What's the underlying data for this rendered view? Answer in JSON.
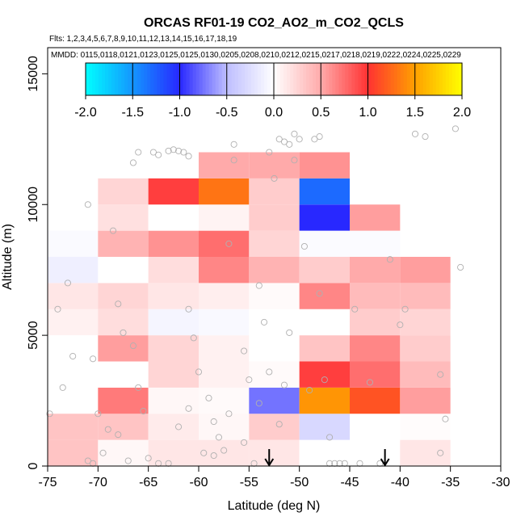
{
  "chart_data": {
    "type": "heatmap",
    "title": "ORCAS RF01-19 CO2_AO2_m_CO2_QCLS",
    "flights_label": "Flts: 1,2,3,4,5,6,7,8,9,10,11,12,13,14,15,16,17,18,19",
    "dates_label": "MMDD: 0115,0118,0121,0123,0125,0125,0130,0205,0208,0210,0212,0215,0217,0218,0219,0222,0224,0225,0229",
    "xlabel": "Latitude (deg N)",
    "ylabel": "Altitude (m)",
    "xlim": [
      -75,
      -30
    ],
    "ylim": [
      0,
      16000
    ],
    "x_ticks": [
      -75,
      -70,
      -65,
      -60,
      -55,
      -50,
      -45,
      -40,
      -35,
      -30
    ],
    "x_tick_labels": [
      "-75",
      "-70",
      "-65",
      "-60",
      "-55",
      "-50",
      "-45",
      "-40",
      "-35",
      "-30"
    ],
    "y_ticks": [
      0,
      5000,
      10000,
      15000
    ],
    "y_tick_labels": [
      "0",
      "5000",
      "10000",
      "15000"
    ],
    "colorbar": {
      "range": [
        -2,
        2
      ],
      "ticks": [
        -2,
        -1.5,
        -1,
        -0.5,
        0,
        0.5,
        1,
        1.5,
        2
      ],
      "tick_labels": [
        "-2.0",
        "-1.5",
        "-1.0",
        "-0.5",
        "0.0",
        "0.5",
        "1.0",
        "1.5",
        "2.0"
      ]
    },
    "lat_bin_width": 5,
    "alt_bin_height": 1000,
    "cells": [
      {
        "lat": -75,
        "alt": 0,
        "v": 0.35
      },
      {
        "lat": -75,
        "alt": 1000,
        "v": 0.35
      },
      {
        "lat": -75,
        "alt": 4000,
        "v": 0.0
      },
      {
        "lat": -75,
        "alt": 5000,
        "v": 0.08
      },
      {
        "lat": -75,
        "alt": 6000,
        "v": 0.15
      },
      {
        "lat": -75,
        "alt": 7000,
        "v": -0.12
      },
      {
        "lat": -75,
        "alt": 8000,
        "v": -0.04
      },
      {
        "lat": -70,
        "alt": 0,
        "v": 0.05
      },
      {
        "lat": -70,
        "alt": 1000,
        "v": 0.35
      },
      {
        "lat": -70,
        "alt": 2000,
        "v": 0.7
      },
      {
        "lat": -70,
        "alt": 3000,
        "v": 0.0
      },
      {
        "lat": -70,
        "alt": 4000,
        "v": 0.55
      },
      {
        "lat": -70,
        "alt": 5000,
        "v": 0.2
      },
      {
        "lat": -70,
        "alt": 6000,
        "v": 0.25
      },
      {
        "lat": -70,
        "alt": 7000,
        "v": 0.0
      },
      {
        "lat": -70,
        "alt": 8000,
        "v": 0.45
      },
      {
        "lat": -70,
        "alt": 9000,
        "v": 0.18
      },
      {
        "lat": -70,
        "alt": 10000,
        "v": 0.25
      },
      {
        "lat": -65,
        "alt": 0,
        "v": 0.15
      },
      {
        "lat": -65,
        "alt": 1000,
        "v": 0.12
      },
      {
        "lat": -65,
        "alt": 2000,
        "v": 0.05
      },
      {
        "lat": -65,
        "alt": 3000,
        "v": 0.25
      },
      {
        "lat": -65,
        "alt": 4000,
        "v": 0.25
      },
      {
        "lat": -65,
        "alt": 5000,
        "v": -0.08
      },
      {
        "lat": -65,
        "alt": 6000,
        "v": 0.15
      },
      {
        "lat": -65,
        "alt": 7000,
        "v": 0.2
      },
      {
        "lat": -65,
        "alt": 8000,
        "v": 0.6
      },
      {
        "lat": -65,
        "alt": 9000,
        "v": 0.0
      },
      {
        "lat": -65,
        "alt": 10000,
        "v": 0.95
      },
      {
        "lat": -60,
        "alt": 0,
        "v": 0.15
      },
      {
        "lat": -60,
        "alt": 1000,
        "v": 0.05
      },
      {
        "lat": -60,
        "alt": 2000,
        "v": 0.03
      },
      {
        "lat": -60,
        "alt": 3000,
        "v": 0.08
      },
      {
        "lat": -60,
        "alt": 4000,
        "v": 0.08
      },
      {
        "lat": -60,
        "alt": 5000,
        "v": -0.05
      },
      {
        "lat": -60,
        "alt": 6000,
        "v": 0.1
      },
      {
        "lat": -60,
        "alt": 7000,
        "v": 0.65
      },
      {
        "lat": -60,
        "alt": 8000,
        "v": 0.75
      },
      {
        "lat": -60,
        "alt": 9000,
        "v": 0.07
      },
      {
        "lat": -60,
        "alt": 10000,
        "v": 1.3
      },
      {
        "lat": -60,
        "alt": 11000,
        "v": 0.5
      },
      {
        "lat": -55,
        "alt": 0,
        "v": 0.15
      },
      {
        "lat": -55,
        "alt": 1000,
        "v": 0.3
      },
      {
        "lat": -55,
        "alt": 2000,
        "v": -0.75
      },
      {
        "lat": -55,
        "alt": 3000,
        "v": 0.03
      },
      {
        "lat": -55,
        "alt": 4000,
        "v": 0.0
      },
      {
        "lat": -55,
        "alt": 5000,
        "v": 0.0
      },
      {
        "lat": -55,
        "alt": 6000,
        "v": 0.03
      },
      {
        "lat": -55,
        "alt": 7000,
        "v": 0.45
      },
      {
        "lat": -55,
        "alt": 8000,
        "v": 0.25
      },
      {
        "lat": -55,
        "alt": 9000,
        "v": 0.3
      },
      {
        "lat": -55,
        "alt": 10000,
        "v": 0.3
      },
      {
        "lat": -55,
        "alt": 11000,
        "v": 0.5
      },
      {
        "lat": -50,
        "alt": 0,
        "v": 0.0
      },
      {
        "lat": -50,
        "alt": 1000,
        "v": -0.3
      },
      {
        "lat": -50,
        "alt": 2000,
        "v": 1.45
      },
      {
        "lat": -50,
        "alt": 3000,
        "v": 0.95
      },
      {
        "lat": -50,
        "alt": 4000,
        "v": 0.35
      },
      {
        "lat": -50,
        "alt": 5000,
        "v": 0.0
      },
      {
        "lat": -50,
        "alt": 6000,
        "v": 0.65
      },
      {
        "lat": -50,
        "alt": 7000,
        "v": 0.3
      },
      {
        "lat": -50,
        "alt": 8000,
        "v": -0.03
      },
      {
        "lat": -50,
        "alt": 9000,
        "v": -1.0
      },
      {
        "lat": -50,
        "alt": 10000,
        "v": -1.3
      },
      {
        "lat": -50,
        "alt": 11000,
        "v": 0.6
      },
      {
        "lat": -45,
        "alt": 2000,
        "v": 1.15
      },
      {
        "lat": -45,
        "alt": 3000,
        "v": 0.75
      },
      {
        "lat": -45,
        "alt": 4000,
        "v": 0.65
      },
      {
        "lat": -45,
        "alt": 5000,
        "v": 0.3
      },
      {
        "lat": -45,
        "alt": 6000,
        "v": 0.4
      },
      {
        "lat": -45,
        "alt": 7000,
        "v": 0.5
      },
      {
        "lat": -45,
        "alt": 8000,
        "v": -0.03
      },
      {
        "lat": -45,
        "alt": 9000,
        "v": 0.55
      },
      {
        "lat": -40,
        "alt": 0,
        "v": 0.15
      },
      {
        "lat": -40,
        "alt": 1000,
        "v": 0.02
      },
      {
        "lat": -40,
        "alt": 2000,
        "v": 0.55
      },
      {
        "lat": -40,
        "alt": 3000,
        "v": 0.4
      },
      {
        "lat": -40,
        "alt": 4000,
        "v": 0.3
      },
      {
        "lat": -40,
        "alt": 5000,
        "v": 0.25
      },
      {
        "lat": -40,
        "alt": 6000,
        "v": 0.4
      },
      {
        "lat": -40,
        "alt": 7000,
        "v": 0.55
      }
    ],
    "observations": [
      [
        -74.8,
        2000
      ],
      [
        -73.5,
        3000
      ],
      [
        -72.5,
        4200
      ],
      [
        -74,
        6000
      ],
      [
        -73,
        7000
      ],
      [
        -71,
        10000
      ],
      [
        -70.5,
        4100
      ],
      [
        -70,
        2000
      ],
      [
        -69,
        1400
      ],
      [
        -68.5,
        9000
      ],
      [
        -68,
        6200
      ],
      [
        -67.5,
        5100
      ],
      [
        -66.5,
        4600
      ],
      [
        -66,
        3000
      ],
      [
        -66.5,
        11600
      ],
      [
        -66,
        12000
      ],
      [
        -64.5,
        12000
      ],
      [
        -64,
        11900
      ],
      [
        -63,
        12050
      ],
      [
        -62.5,
        12100
      ],
      [
        -62,
        12050
      ],
      [
        -61.5,
        12000
      ],
      [
        -61,
        11850
      ],
      [
        -61,
        6000
      ],
      [
        -60.5,
        4900
      ],
      [
        -60,
        3600
      ],
      [
        -59,
        2600
      ],
      [
        -58.5,
        1700
      ],
      [
        -58,
        1100
      ],
      [
        -57,
        2000
      ],
      [
        -57,
        8500
      ],
      [
        -56.5,
        11700
      ],
      [
        -56.5,
        12300
      ],
      [
        -55.5,
        4400
      ],
      [
        -55,
        3300
      ],
      [
        -54,
        2400
      ],
      [
        -54,
        6900
      ],
      [
        -53.5,
        5500
      ],
      [
        -53,
        3600
      ],
      [
        -53,
        12000
      ],
      [
        -52.5,
        11000
      ],
      [
        -52,
        12500
      ],
      [
        -51.5,
        12400
      ],
      [
        -51,
        12300
      ],
      [
        -50.5,
        11700
      ],
      [
        -50.5,
        12700
      ],
      [
        -50,
        12500
      ],
      [
        -49.5,
        8400
      ],
      [
        -48.5,
        12500
      ],
      [
        -48,
        12600
      ],
      [
        -48,
        6600
      ],
      [
        -47.5,
        3300
      ],
      [
        -47,
        100
      ],
      [
        -47,
        1100
      ],
      [
        -46.5,
        100
      ],
      [
        -46,
        100
      ],
      [
        -45.5,
        100
      ],
      [
        -44.5,
        6000
      ],
      [
        -43,
        3200
      ],
      [
        -41,
        7900
      ],
      [
        -40,
        5400
      ],
      [
        -39.5,
        6000
      ],
      [
        -38.5,
        12700
      ],
      [
        -37.5,
        12600
      ],
      [
        -36,
        3500
      ],
      [
        -35.5,
        1800
      ],
      [
        -34.5,
        12900
      ],
      [
        -34,
        7600
      ],
      [
        -64,
        100
      ],
      [
        -63,
        100
      ],
      [
        -62,
        1500
      ],
      [
        -61,
        2200
      ],
      [
        -59.5,
        500
      ],
      [
        -58.5,
        400
      ],
      [
        -57.5,
        600
      ],
      [
        -55.5,
        900
      ],
      [
        -54.5,
        100
      ],
      [
        -52,
        1600
      ],
      [
        -51.5,
        3100
      ],
      [
        -51,
        5100
      ],
      [
        -49,
        2900
      ],
      [
        -44,
        100
      ],
      [
        -42,
        100
      ],
      [
        -36,
        500
      ],
      [
        -71,
        200
      ],
      [
        -70.5,
        100
      ],
      [
        -69.5,
        500
      ],
      [
        -68,
        1200
      ],
      [
        -65.5,
        2100
      ],
      [
        -67,
        200
      ],
      [
        -65,
        300
      ]
    ],
    "arrows_lat": [
      -53,
      -41.5
    ]
  }
}
